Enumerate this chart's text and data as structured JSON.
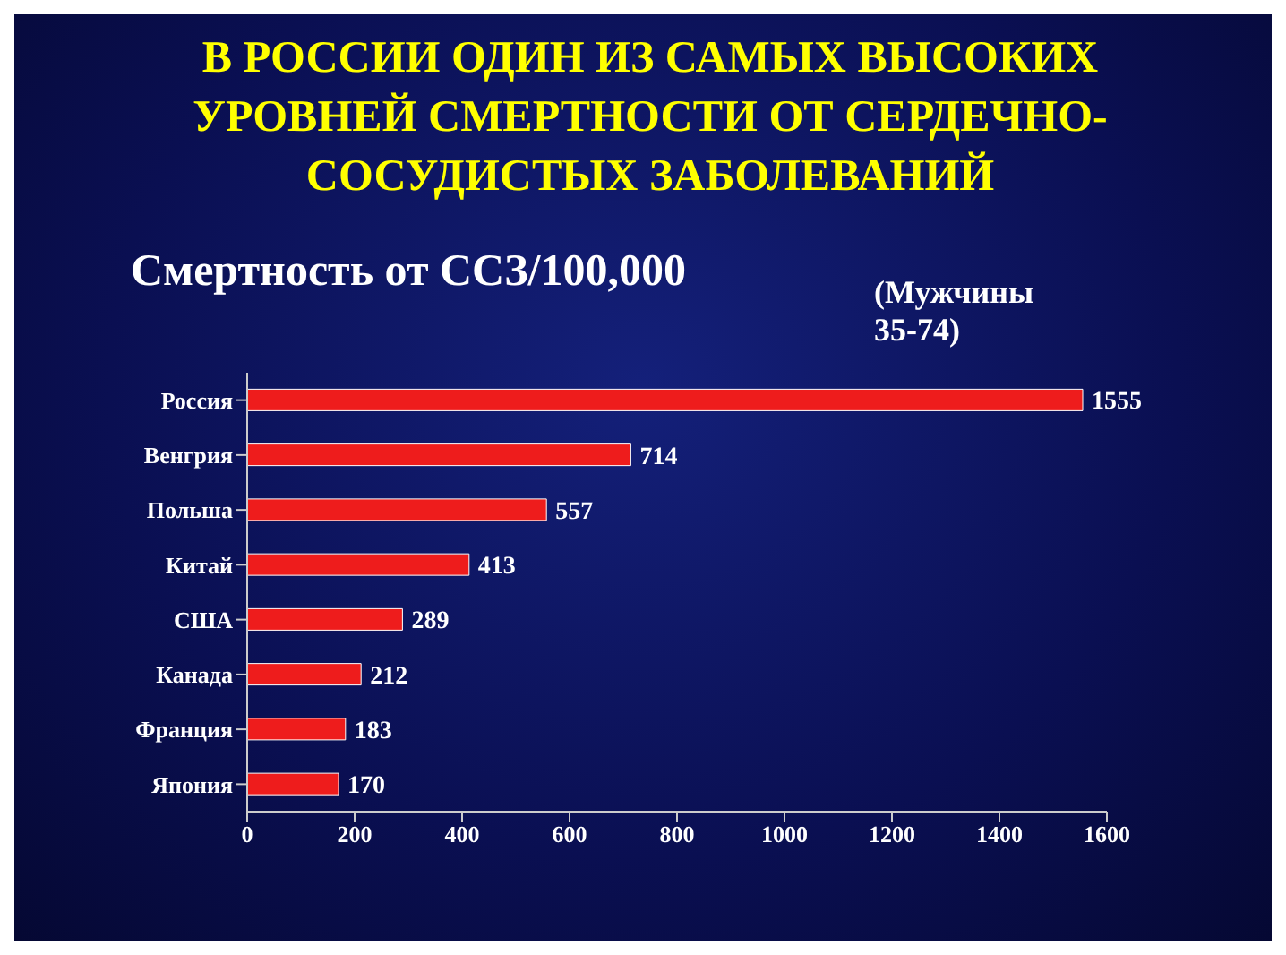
{
  "chart_data": {
    "type": "bar",
    "orientation": "horizontal",
    "title": "В РОССИИ ОДИН ИЗ САМЫХ ВЫСОКИХ УРОВНЕЙ СМЕРТНОСТИ  ОТ СЕРДЕЧНО-СОСУДИСТЫХ ЗАБОЛЕВАНИЙ",
    "subtitle": "Смертность от ССЗ/100,000",
    "annotations": [
      "(Мужчины 35-74)"
    ],
    "categories": [
      "Россия",
      "Венгрия",
      "Польша",
      "Китай",
      "США",
      "Канада",
      "Франция",
      "Япония"
    ],
    "values": [
      1555,
      714,
      557,
      413,
      289,
      212,
      183,
      170
    ],
    "color": "#ee1c1c",
    "xlim": [
      0,
      1600
    ],
    "xticks": [
      0,
      200,
      400,
      600,
      800,
      1000,
      1200,
      1400,
      1600
    ],
    "data_labels": true,
    "grid": false,
    "legend": false
  }
}
